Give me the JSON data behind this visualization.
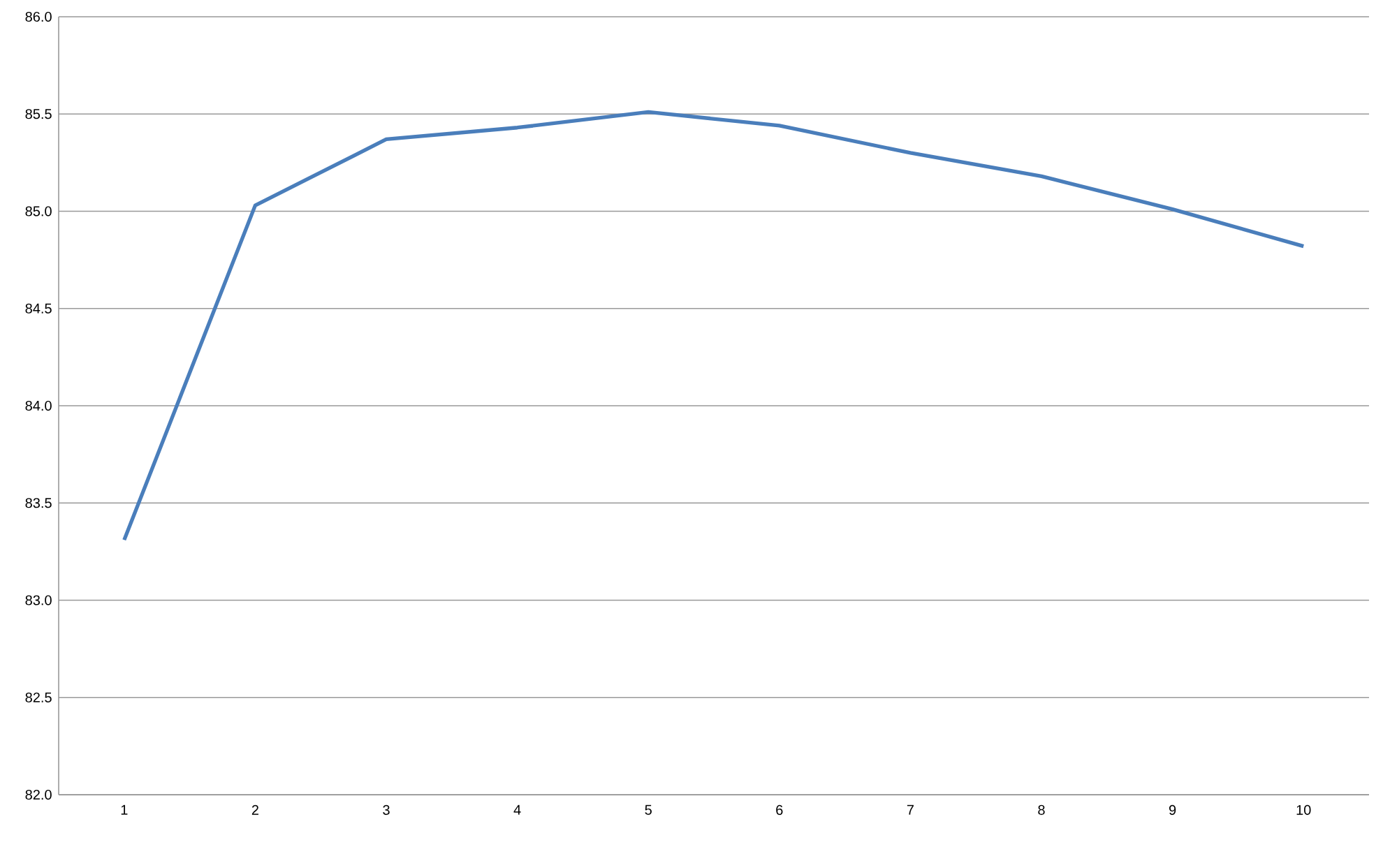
{
  "chart_data": {
    "type": "line",
    "categories": [
      "1",
      "2",
      "3",
      "4",
      "5",
      "6",
      "7",
      "8",
      "9",
      "10"
    ],
    "series": [
      {
        "color": "#4a7ebb",
        "values": [
          83.31,
          85.03,
          85.37,
          85.43,
          85.51,
          85.44,
          85.3,
          85.18,
          85.01,
          84.82
        ]
      }
    ],
    "ylim": [
      82,
      86
    ],
    "yticks": [
      {
        "value": 82,
        "label": "82.0"
      },
      {
        "value": 82.5,
        "label": "82.5"
      },
      {
        "value": 83,
        "label": "83.0"
      },
      {
        "value": 83.5,
        "label": "83.5"
      },
      {
        "value": 84,
        "label": "84.0"
      },
      {
        "value": 84.5,
        "label": "84.5"
      },
      {
        "value": 85,
        "label": "85.0"
      },
      {
        "value": 85.5,
        "label": "85.5"
      },
      {
        "value": 86,
        "label": "86.0"
      }
    ],
    "grid": "y"
  }
}
